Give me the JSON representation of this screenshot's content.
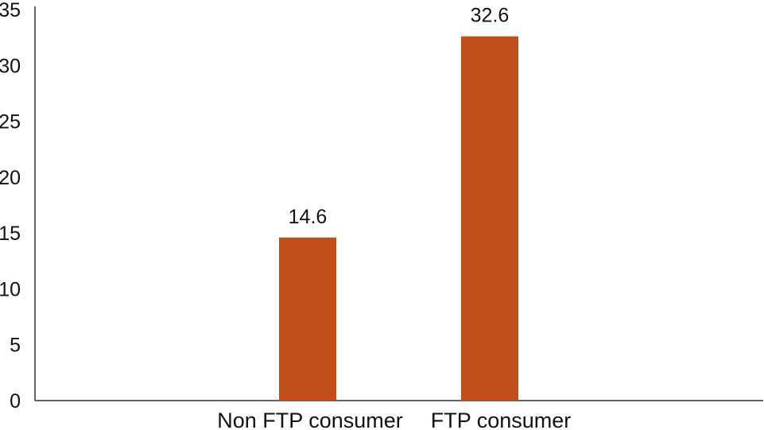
{
  "chart_data": {
    "type": "bar",
    "categories": [
      "Non FTP consumer",
      "FTP consumer"
    ],
    "values": [
      14.6,
      32.6
    ],
    "data_labels": [
      "14.6",
      "32.6"
    ],
    "y_ticks": [
      "0",
      "5",
      "10",
      "15",
      "20",
      "25",
      "30",
      "35"
    ],
    "ylim": [
      0,
      35
    ],
    "grid": false,
    "bar_color": "#c04e1a",
    "axis_color": "#333333"
  }
}
